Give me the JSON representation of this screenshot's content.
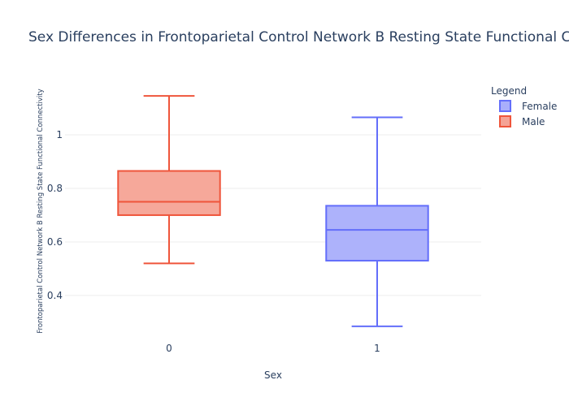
{
  "chart_data": {
    "type": "box",
    "title": "Sex Differences in Frontoparietal Control Network B Resting State Functional Connectivity",
    "xlabel": "Sex",
    "ylabel": "Frontoparietal Control Network B Resting State Functional Connectivity",
    "categories": [
      "0",
      "1"
    ],
    "ylim": [
      0.23,
      1.2
    ],
    "yticks": [
      0.4,
      0.6,
      0.8,
      1
    ],
    "ytick_labels": [
      "0.4",
      "0.6",
      "0.8",
      "1"
    ],
    "grid": true,
    "legend": {
      "title": "Legend",
      "placement": "top-right",
      "entries": [
        "Female",
        "Male"
      ]
    },
    "series": [
      {
        "name": "Male",
        "category": "0",
        "min": 0.52,
        "q1": 0.7,
        "median": 0.75,
        "q3": 0.865,
        "max": 1.145,
        "line_color": "#ef553b",
        "fill_color": "#f5a395"
      },
      {
        "name": "Female",
        "category": "1",
        "min": 0.285,
        "q1": 0.53,
        "median": 0.645,
        "q3": 0.735,
        "max": 1.065,
        "line_color": "#636efa",
        "fill_color": "#a9aefb"
      }
    ]
  }
}
